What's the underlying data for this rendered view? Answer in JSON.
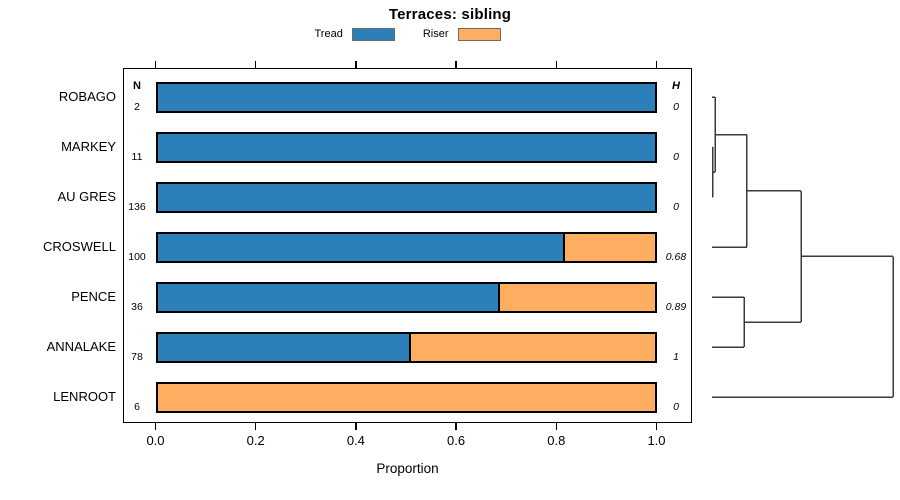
{
  "chart_data": {
    "type": "bar",
    "orientation": "horizontal",
    "stacked": true,
    "title": "Terraces: sibling",
    "xlabel": "Proportion",
    "xlim": [
      0.0,
      1.0
    ],
    "xticks": [
      "0.0",
      "0.2",
      "0.4",
      "0.6",
      "0.8",
      "1.0"
    ],
    "grid": false,
    "legend_position": "top-center",
    "categories": [
      "ROBAGO",
      "MARKEY",
      "AU GRES",
      "CROSWELL",
      "PENCE",
      "ANNALAKE",
      "LENROOT"
    ],
    "series": [
      {
        "name": "Tread",
        "color": "#2C7FB8",
        "values": [
          1.0,
          1.0,
          1.0,
          0.82,
          0.69,
          0.51,
          0.0
        ]
      },
      {
        "name": "Riser",
        "color": "#FDAE61",
        "values": [
          0.0,
          0.0,
          0.0,
          0.18,
          0.31,
          0.49,
          1.0
        ]
      }
    ],
    "n_column": {
      "header": "N",
      "values": [
        "2",
        "11",
        "136",
        "100",
        "36",
        "78",
        "6"
      ]
    },
    "h_column": {
      "header": "H",
      "values": [
        "0",
        "0",
        "0",
        "0.68",
        "0.89",
        "1",
        "0"
      ]
    },
    "dendrogram": {
      "orientation": "right",
      "leaves": [
        "ROBAGO",
        "MARKEY",
        "AU GRES",
        "CROSWELL",
        "PENCE",
        "ANNALAKE",
        "LENROOT"
      ],
      "merges": [
        {
          "a": "MARKEY",
          "b": "AU GRES",
          "h": 0.004
        },
        {
          "a": "ROBAGO",
          "b": "#0",
          "h": 0.017
        },
        {
          "a": "#1",
          "b": "CROSWELL",
          "h": 0.193
        },
        {
          "a": "PENCE",
          "b": "ANNALAKE",
          "h": 0.177
        },
        {
          "a": "#2",
          "b": "#3",
          "h": 0.492
        },
        {
          "a": "#4",
          "b": "LENROOT",
          "h": 1.0
        }
      ]
    },
    "colors": {
      "tread": "#2C7FB8",
      "riser": "#FDAE61",
      "bar_border": "#000000",
      "dendro_line": "#3a3a3a"
    }
  }
}
